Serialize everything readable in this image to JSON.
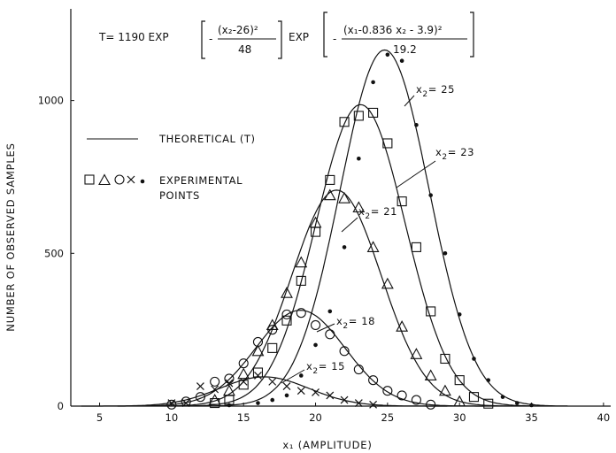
{
  "chart_data": {
    "type": "scatter",
    "title": "",
    "xlabel": "x₁ (AMPLITUDE)",
    "ylabel": "NUMBER OF OBSERVED SAMPLES",
    "xlim": [
      3,
      40.5
    ],
    "ylim": [
      0,
      1300
    ],
    "xticks": [
      5,
      10,
      15,
      20,
      25,
      30,
      35,
      40
    ],
    "yticks": [
      0,
      500,
      1000
    ],
    "grid": false,
    "formula": {
      "lhs": "T= 1190  EXP",
      "num1": "(x₂-26)²",
      "den1": "48",
      "exp2": "EXP",
      "num2": "(x₁-0.836 x₂ - 3.9)²",
      "den2": "19.2",
      "minus": "-"
    },
    "legend": {
      "theoretical": "THEORETICAL (T)",
      "experimental_line1": "EXPERIMENTAL",
      "experimental_line2": "POINTS"
    },
    "model": {
      "A": 1190,
      "x2_center": 26,
      "x2_div": 48,
      "coef": 0.836,
      "offset": 3.9,
      "x1_div": 19.2
    },
    "series": [
      {
        "name": "x₂ = 25",
        "x2": 25,
        "marker": "dot",
        "points": [
          [
            14,
            3
          ],
          [
            16,
            10
          ],
          [
            17,
            20
          ],
          [
            18,
            35
          ],
          [
            19,
            100
          ],
          [
            20,
            200
          ],
          [
            21,
            310
          ],
          [
            22,
            520
          ],
          [
            23,
            810
          ],
          [
            24,
            1060
          ],
          [
            25,
            1150
          ],
          [
            26,
            1130
          ],
          [
            27,
            920
          ],
          [
            28,
            690
          ],
          [
            29,
            500
          ],
          [
            30,
            300
          ],
          [
            31,
            155
          ],
          [
            32,
            85
          ],
          [
            33,
            30
          ],
          [
            34,
            10
          ],
          [
            35,
            3
          ]
        ]
      },
      {
        "name": "x₂ = 23",
        "x2": 23,
        "marker": "square",
        "points": [
          [
            13,
            10
          ],
          [
            14,
            20
          ],
          [
            15,
            70
          ],
          [
            16,
            110
          ],
          [
            17,
            190
          ],
          [
            18,
            280
          ],
          [
            19,
            410
          ],
          [
            20,
            570
          ],
          [
            21,
            740
          ],
          [
            22,
            930
          ],
          [
            23,
            950
          ],
          [
            24,
            960
          ],
          [
            25,
            860
          ],
          [
            26,
            670
          ],
          [
            27,
            520
          ],
          [
            28,
            310
          ],
          [
            29,
            155
          ],
          [
            30,
            85
          ],
          [
            31,
            30
          ],
          [
            32,
            8
          ]
        ]
      },
      {
        "name": "x₂ = 21",
        "x2": 21,
        "marker": "triangle",
        "points": [
          [
            13,
            20
          ],
          [
            14,
            50
          ],
          [
            15,
            105
          ],
          [
            16,
            180
          ],
          [
            17,
            265
          ],
          [
            18,
            370
          ],
          [
            19,
            470
          ],
          [
            20,
            600
          ],
          [
            21,
            690
          ],
          [
            22,
            680
          ],
          [
            23,
            650
          ],
          [
            24,
            520
          ],
          [
            25,
            400
          ],
          [
            26,
            260
          ],
          [
            27,
            170
          ],
          [
            28,
            100
          ],
          [
            29,
            50
          ],
          [
            30,
            15
          ]
        ]
      },
      {
        "name": "x₂ = 18",
        "x2": 18,
        "marker": "circle",
        "points": [
          [
            10,
            5
          ],
          [
            11,
            15
          ],
          [
            12,
            30
          ],
          [
            13,
            80
          ],
          [
            14,
            90
          ],
          [
            15,
            140
          ],
          [
            16,
            210
          ],
          [
            17,
            250
          ],
          [
            18,
            300
          ],
          [
            19,
            305
          ],
          [
            20,
            265
          ],
          [
            21,
            235
          ],
          [
            22,
            180
          ],
          [
            23,
            120
          ],
          [
            24,
            85
          ],
          [
            25,
            50
          ],
          [
            26,
            35
          ],
          [
            27,
            20
          ],
          [
            28,
            5
          ]
        ]
      },
      {
        "name": "x₂ = 15",
        "x2": 15,
        "marker": "x",
        "points": [
          [
            10,
            10
          ],
          [
            11,
            10
          ],
          [
            12,
            65
          ],
          [
            13,
            55
          ],
          [
            14,
            75
          ],
          [
            15,
            80
          ],
          [
            16,
            100
          ],
          [
            17,
            80
          ],
          [
            18,
            65
          ],
          [
            19,
            50
          ],
          [
            20,
            45
          ],
          [
            21,
            35
          ],
          [
            22,
            20
          ],
          [
            23,
            10
          ],
          [
            24,
            5
          ]
        ]
      }
    ],
    "curve_labels": [
      {
        "series": "x₂ = 25",
        "lab": "x",
        "sub": "2",
        "eq": "= 25"
      },
      {
        "series": "x₂ = 23",
        "lab": "x",
        "sub": "2",
        "eq": "= 23"
      },
      {
        "series": "x₂ = 21",
        "lab": "x",
        "sub": "2",
        "eq": "= 21"
      },
      {
        "series": "x₂ = 18",
        "lab": "x",
        "sub": "2",
        "eq": "= 18"
      },
      {
        "series": "x₂ = 15",
        "lab": "x",
        "sub": "2",
        "eq": "= 15"
      }
    ]
  }
}
